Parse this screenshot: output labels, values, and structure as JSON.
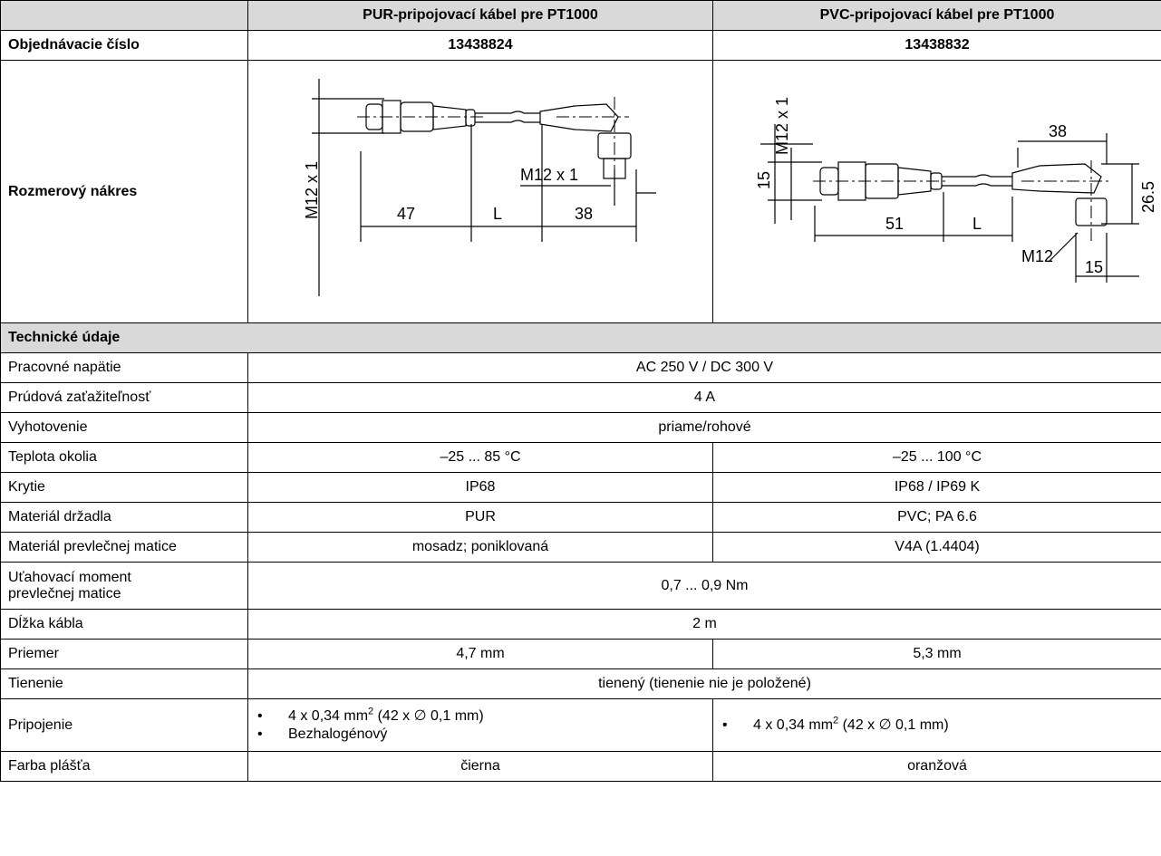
{
  "header": {
    "empty": "",
    "col1": "PUR-pripojovací kábel pre PT1000",
    "col2": "PVC-pripojovací kábel pre PT1000"
  },
  "order": {
    "label": "Objednávacie číslo",
    "v1": "13438824",
    "v2": "13438832"
  },
  "drawing": {
    "label": "Rozmerový nákres",
    "left": {
      "thread": "M12 x 1",
      "thread2": "M12 x 1",
      "d47": "47",
      "dL": "L",
      "d38": "38"
    },
    "right": {
      "thread": "M12 x 1",
      "d15a": "15",
      "d38": "38",
      "d26": "26.5",
      "d51": "51",
      "dL": "L",
      "m12": "M12",
      "d15b": "15"
    }
  },
  "section": {
    "title": "Technické údaje"
  },
  "rows": {
    "voltage": {
      "label": "Pracovné napätie",
      "value": "AC 250 V / DC 300 V"
    },
    "current": {
      "label": "Prúdová zaťažiteľnosť",
      "value": "4 A"
    },
    "design": {
      "label": "Vyhotovenie",
      "value": "priame/rohové"
    },
    "temp": {
      "label": "Teplota okolia",
      "v1": "–25 ... 85 °C",
      "v2": "–25 ... 100 °C"
    },
    "protection": {
      "label": "Krytie",
      "v1": "IP68",
      "v2": "IP68 / IP69 K"
    },
    "handle": {
      "label": "Materiál držadla",
      "v1": "PUR",
      "v2": "PVC; PA 6.6"
    },
    "nut": {
      "label": "Materiál prevlečnej matice",
      "v1": "mosadz; poniklovaná",
      "v2": "V4A (1.4404)"
    },
    "torque": {
      "label_line1": "Uťahovací moment",
      "label_line2": "prevlečnej matice",
      "value": "0,7 ... 0,9 Nm"
    },
    "length": {
      "label": "Dĺžka kábla",
      "value": "2 m"
    },
    "diameter": {
      "label": "Priemer",
      "v1": "4,7 mm",
      "v2": "5,3 mm"
    },
    "shield": {
      "label": "Tienenie",
      "value": "tienený (tienenie nie je položené)"
    },
    "connection": {
      "label": "Pripojenie",
      "c1_item1_pre": "4 x 0,34 mm",
      "c1_item1_sup": "2",
      "c1_item1_post": " (42 x ∅ 0,1 mm)",
      "c1_item2": "Bezhalogénový",
      "c2_item1_pre": "4 x 0,34 mm",
      "c2_item1_sup": "2",
      "c2_item1_post": " (42 x ∅ 0,1 mm)"
    },
    "color": {
      "label": "Farba plášťa",
      "v1": "čierna",
      "v2": "oranžová"
    }
  }
}
